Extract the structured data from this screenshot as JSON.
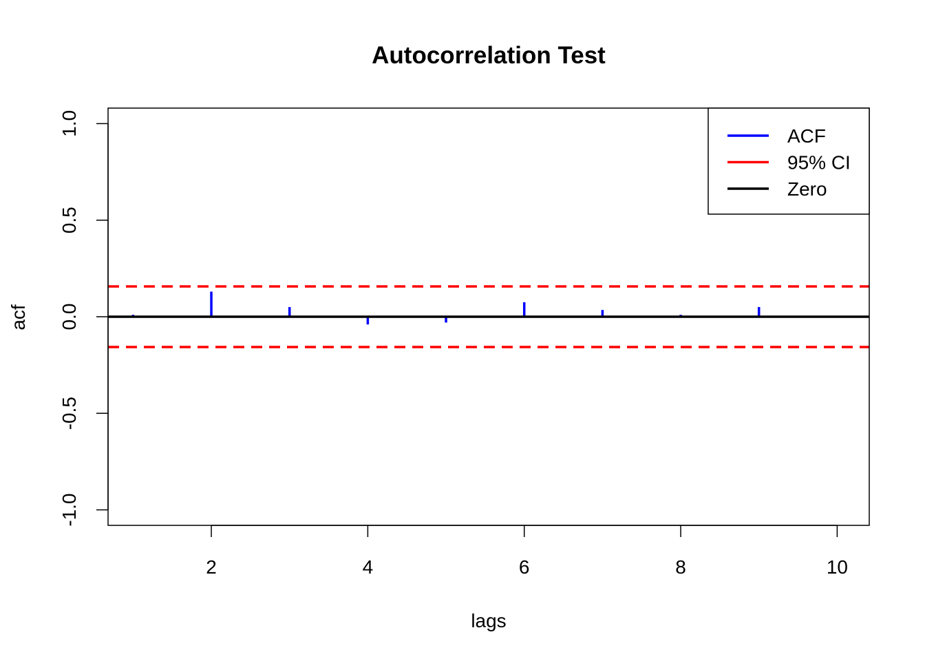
{
  "chart_data": {
    "type": "bar",
    "title": "Autocorrelation Test",
    "xlabel": "lags",
    "ylabel": "acf",
    "x": [
      1,
      2,
      3,
      4,
      5,
      6,
      7,
      8,
      9
    ],
    "series": [
      {
        "name": "ACF",
        "values": [
          0.01,
          0.13,
          0.05,
          -0.04,
          -0.03,
          0.075,
          0.035,
          0.01,
          0.05
        ],
        "color": "#0000ff"
      }
    ],
    "ci": {
      "name": "95% CI",
      "upper": 0.157,
      "lower": -0.157,
      "color": "#ff0000",
      "style": "dashed"
    },
    "zero": {
      "name": "Zero",
      "value": 0,
      "color": "#000000"
    },
    "xlim": [
      0.68,
      10.41
    ],
    "ylim": [
      -1.08,
      1.08
    ],
    "xticks": [
      2,
      4,
      6,
      8,
      10
    ],
    "yticks": [
      -1.0,
      -0.5,
      0.0,
      0.5,
      1.0
    ],
    "xtick_labels": [
      "2",
      "4",
      "6",
      "8",
      "10"
    ],
    "ytick_labels": [
      "-1.0",
      "-0.5",
      "0.0",
      "0.5",
      "1.0"
    ],
    "legend": {
      "position": "top-right",
      "entries": [
        {
          "label": "ACF",
          "color": "#0000ff"
        },
        {
          "label": "95% CI",
          "color": "#ff0000"
        },
        {
          "label": "Zero",
          "color": "#000000"
        }
      ]
    },
    "grid": false
  }
}
